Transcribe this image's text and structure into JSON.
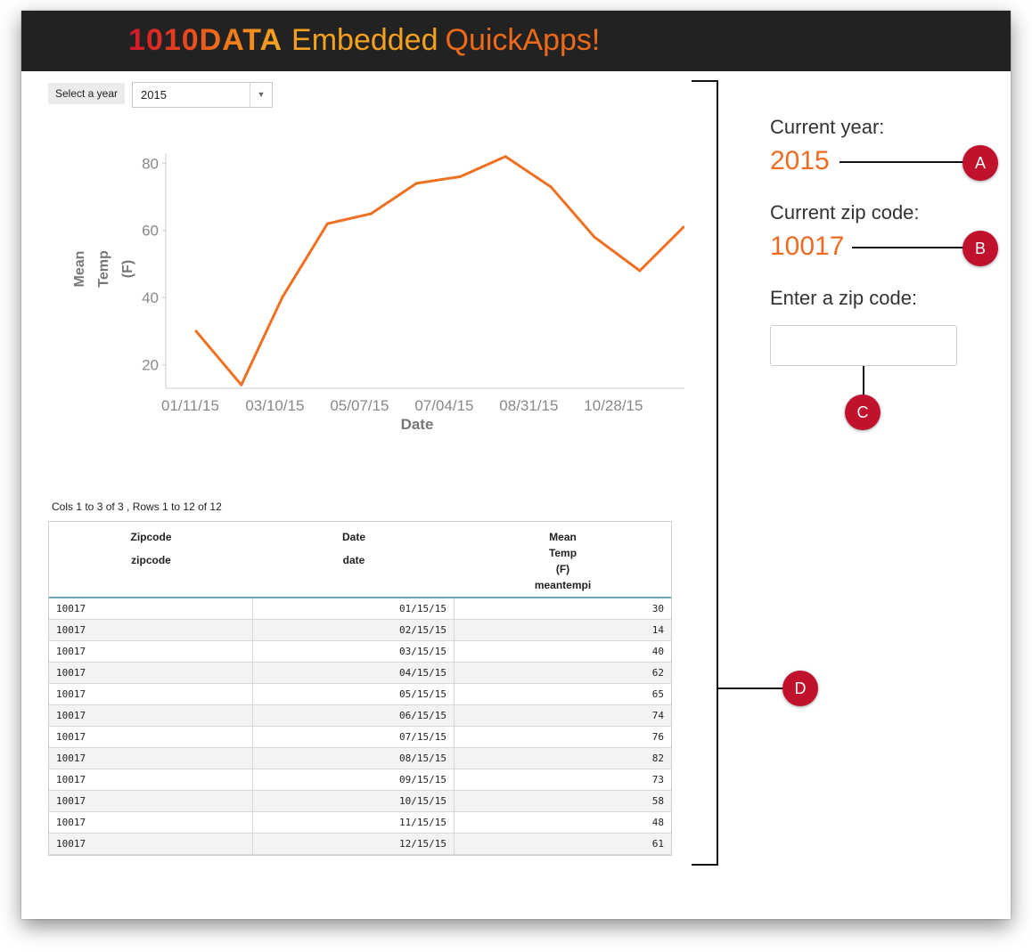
{
  "header": {
    "brand": "1010DATA",
    "embedded": "Embedded",
    "quickapps": "QuickApps!"
  },
  "controls": {
    "year_label": "Select a year",
    "year_value": "2015"
  },
  "chart_data": {
    "type": "line",
    "xlabel": "Date",
    "ylabel": "Mean Temp (F)",
    "ylabel_lines": [
      "Mean",
      "Temp",
      "(F)"
    ],
    "x_ticks": [
      "01/11/15",
      "03/10/15",
      "05/07/15",
      "07/04/15",
      "08/31/15",
      "10/28/15"
    ],
    "y_ticks": [
      20,
      40,
      60,
      80
    ],
    "ylim": [
      13,
      83
    ],
    "color": "#ef7023",
    "x": [
      "01/15/15",
      "02/15/15",
      "03/15/15",
      "04/15/15",
      "05/15/15",
      "06/15/15",
      "07/15/15",
      "08/15/15",
      "09/15/15",
      "10/15/15",
      "11/15/15",
      "12/15/15"
    ],
    "values": [
      30,
      14,
      40,
      62,
      65,
      74,
      76,
      82,
      73,
      58,
      48,
      61
    ],
    "grid": false
  },
  "table": {
    "meta": "Cols 1 to 3 of 3 , Rows 1 to 12 of 12",
    "columns": [
      {
        "title": "Zipcode",
        "name": "zipcode"
      },
      {
        "title": "Date",
        "name": "date"
      },
      {
        "title_lines": [
          "Mean",
          "Temp",
          "(F)"
        ],
        "name": "meantempi"
      }
    ],
    "rows": [
      [
        "10017",
        "01/15/15",
        "30"
      ],
      [
        "10017",
        "02/15/15",
        "14"
      ],
      [
        "10017",
        "03/15/15",
        "40"
      ],
      [
        "10017",
        "04/15/15",
        "62"
      ],
      [
        "10017",
        "05/15/15",
        "65"
      ],
      [
        "10017",
        "06/15/15",
        "74"
      ],
      [
        "10017",
        "07/15/15",
        "76"
      ],
      [
        "10017",
        "08/15/15",
        "82"
      ],
      [
        "10017",
        "09/15/15",
        "73"
      ],
      [
        "10017",
        "10/15/15",
        "58"
      ],
      [
        "10017",
        "11/15/15",
        "48"
      ],
      [
        "10017",
        "12/15/15",
        "61"
      ]
    ]
  },
  "side": {
    "current_year_label": "Current year:",
    "current_year_value": "2015",
    "current_zip_label": "Current zip code:",
    "current_zip_value": "10017",
    "enter_zip_label": "Enter a zip code:",
    "zip_input_value": ""
  },
  "callouts": {
    "a": "A",
    "b": "B",
    "c": "C",
    "d": "D"
  },
  "colors": {
    "accent": "#ef6b22",
    "callout": "#c0112d",
    "header_bg": "#222222"
  }
}
